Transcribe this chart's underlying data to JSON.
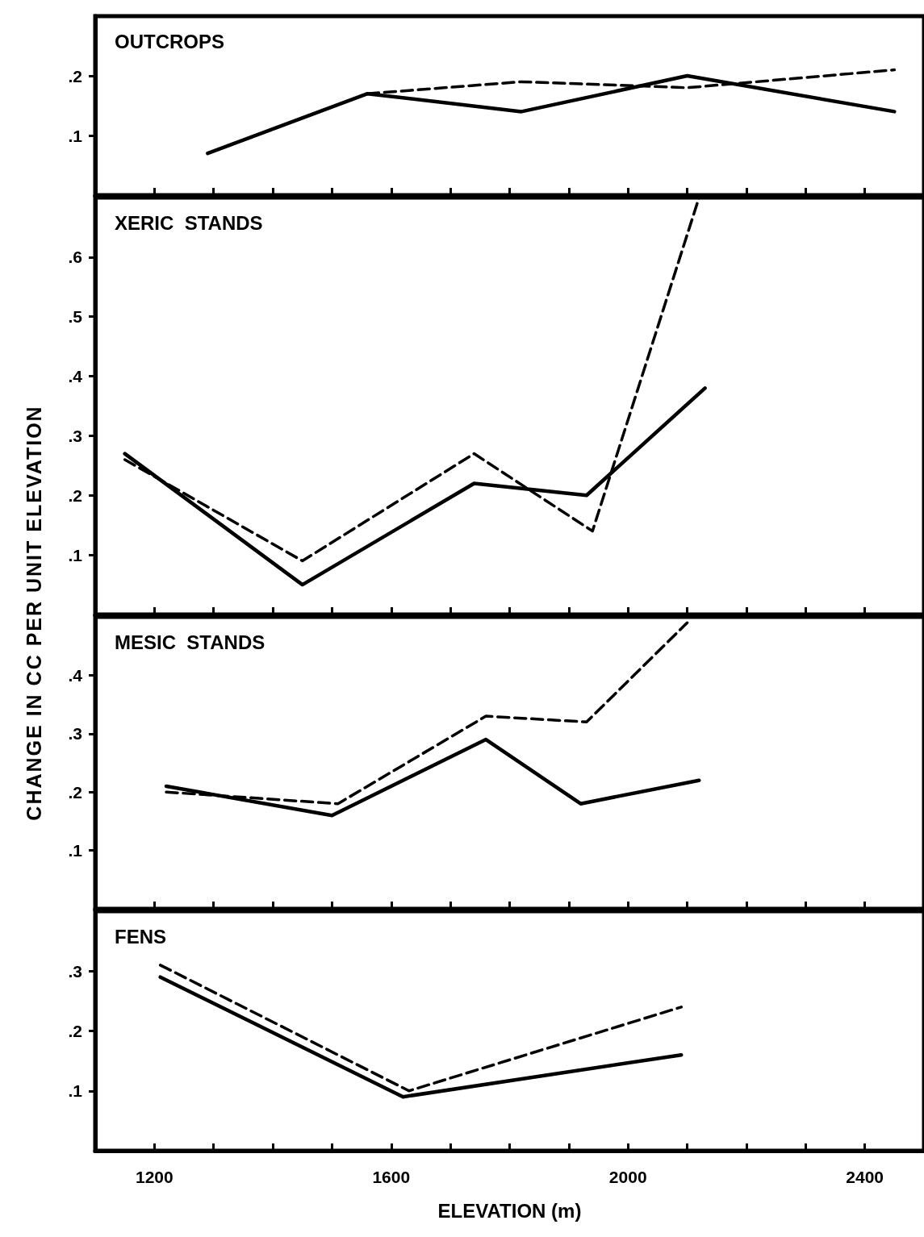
{
  "chart_data": [
    {
      "type": "line",
      "title": "OUTCROPS",
      "xlim": [
        1100,
        2500
      ],
      "xticks": [
        {
          "value": 1200,
          "label": null
        },
        {
          "value": 1300,
          "label": null
        },
        {
          "value": 1400,
          "label": null
        },
        {
          "value": 1500,
          "label": null
        },
        {
          "value": 1600,
          "label": null
        },
        {
          "value": 1700,
          "label": null
        },
        {
          "value": 1800,
          "label": null
        },
        {
          "value": 1900,
          "label": null
        },
        {
          "value": 2000,
          "label": null
        },
        {
          "value": 2100,
          "label": null
        },
        {
          "value": 2200,
          "label": null
        },
        {
          "value": 2300,
          "label": null
        },
        {
          "value": 2400,
          "label": null
        }
      ],
      "ylim": [
        0,
        0.3
      ],
      "yticks": [
        {
          "value": 0.1,
          "label": ".1"
        },
        {
          "value": 0.2,
          "label": ".2"
        }
      ],
      "tick_labels": "y",
      "marker": "none",
      "series": [
        {
          "color": "#000000",
          "line_style": "solid",
          "x": [
            1290,
            1560,
            1820,
            2100,
            2450
          ],
          "values": [
            0.07,
            0.17,
            0.14,
            0.2,
            0.14
          ]
        },
        {
          "color": "#000000",
          "line_style": "dashed",
          "x": [
            1560,
            1820,
            2100,
            2450
          ],
          "values": [
            0.17,
            0.19,
            0.18,
            0.21
          ]
        }
      ]
    },
    {
      "type": "line",
      "title": "XERIC  STANDS",
      "ylabel": "CHANGE IN CC PER UNIT ELEVATION",
      "xlim": [
        1100,
        2500
      ],
      "xticks": [
        {
          "value": 1200,
          "label": null
        },
        {
          "value": 1300,
          "label": null
        },
        {
          "value": 1400,
          "label": null
        },
        {
          "value": 1500,
          "label": null
        },
        {
          "value": 1600,
          "label": null
        },
        {
          "value": 1700,
          "label": null
        },
        {
          "value": 1800,
          "label": null
        },
        {
          "value": 1900,
          "label": null
        },
        {
          "value": 2000,
          "label": null
        },
        {
          "value": 2100,
          "label": null
        },
        {
          "value": 2200,
          "label": null
        },
        {
          "value": 2300,
          "label": null
        },
        {
          "value": 2400,
          "label": null
        }
      ],
      "ylim": [
        0,
        0.7
      ],
      "yticks": [
        {
          "value": 0.1,
          "label": ".1"
        },
        {
          "value": 0.2,
          "label": ".2"
        },
        {
          "value": 0.3,
          "label": ".3"
        },
        {
          "value": 0.4,
          "label": ".4"
        },
        {
          "value": 0.5,
          "label": ".5"
        },
        {
          "value": 0.6,
          "label": ".6"
        }
      ],
      "tick_labels": "y",
      "marker": "none",
      "series": [
        {
          "color": "#000000",
          "line_style": "solid",
          "x": [
            1150,
            1450,
            1740,
            1930,
            2130
          ],
          "values": [
            0.27,
            0.05,
            0.22,
            0.2,
            0.38
          ]
        },
        {
          "color": "#000000",
          "line_style": "dashed",
          "x": [
            1150,
            1450,
            1740,
            1940,
            2120
          ],
          "values": [
            0.26,
            0.09,
            0.27,
            0.14,
            0.7
          ]
        }
      ]
    },
    {
      "type": "line",
      "title": "MESIC  STANDS",
      "xlim": [
        1100,
        2500
      ],
      "xticks": [
        {
          "value": 1200,
          "label": null
        },
        {
          "value": 1300,
          "label": null
        },
        {
          "value": 1400,
          "label": null
        },
        {
          "value": 1500,
          "label": null
        },
        {
          "value": 1600,
          "label": null
        },
        {
          "value": 1700,
          "label": null
        },
        {
          "value": 1800,
          "label": null
        },
        {
          "value": 1900,
          "label": null
        },
        {
          "value": 2000,
          "label": null
        },
        {
          "value": 2100,
          "label": null
        },
        {
          "value": 2200,
          "label": null
        },
        {
          "value": 2300,
          "label": null
        },
        {
          "value": 2400,
          "label": null
        }
      ],
      "ylim": [
        0,
        0.5
      ],
      "yticks": [
        {
          "value": 0.1,
          "label": ".1"
        },
        {
          "value": 0.2,
          "label": ".2"
        },
        {
          "value": 0.3,
          "label": ".3"
        },
        {
          "value": 0.4,
          "label": ".4"
        }
      ],
      "tick_labels": "y",
      "marker": "none",
      "series": [
        {
          "color": "#000000",
          "line_style": "solid",
          "x": [
            1220,
            1500,
            1760,
            1920,
            2120
          ],
          "values": [
            0.21,
            0.16,
            0.29,
            0.18,
            0.22
          ]
        },
        {
          "color": "#000000",
          "line_style": "dashed",
          "x": [
            1220,
            1510,
            1760,
            1930,
            2100
          ],
          "values": [
            0.2,
            0.18,
            0.33,
            0.32,
            0.49
          ]
        }
      ]
    },
    {
      "type": "line",
      "title": "FENS",
      "xlabel": "ELEVATION (m)",
      "xlim": [
        1100,
        2500
      ],
      "xticks": [
        1200,
        {
          "value": 1300,
          "label": null
        },
        {
          "value": 1400,
          "label": null
        },
        {
          "value": 1500,
          "label": null
        },
        1600,
        {
          "value": 1700,
          "label": null
        },
        {
          "value": 1800,
          "label": null
        },
        {
          "value": 1900,
          "label": null
        },
        2000,
        {
          "value": 2100,
          "label": null
        },
        {
          "value": 2200,
          "label": null
        },
        {
          "value": 2300,
          "label": null
        },
        2400
      ],
      "ylim": [
        0,
        0.4
      ],
      "yticks": [
        {
          "value": 0.1,
          "label": ".1"
        },
        {
          "value": 0.2,
          "label": ".2"
        },
        {
          "value": 0.3,
          "label": ".3"
        }
      ],
      "marker": "none",
      "series": [
        {
          "color": "#000000",
          "line_style": "solid",
          "x": [
            1210,
            1620,
            2090
          ],
          "values": [
            0.29,
            0.09,
            0.16
          ]
        },
        {
          "color": "#000000",
          "line_style": "dashed",
          "x": [
            1210,
            1630,
            2090
          ],
          "values": [
            0.31,
            0.1,
            0.24
          ]
        }
      ]
    }
  ]
}
